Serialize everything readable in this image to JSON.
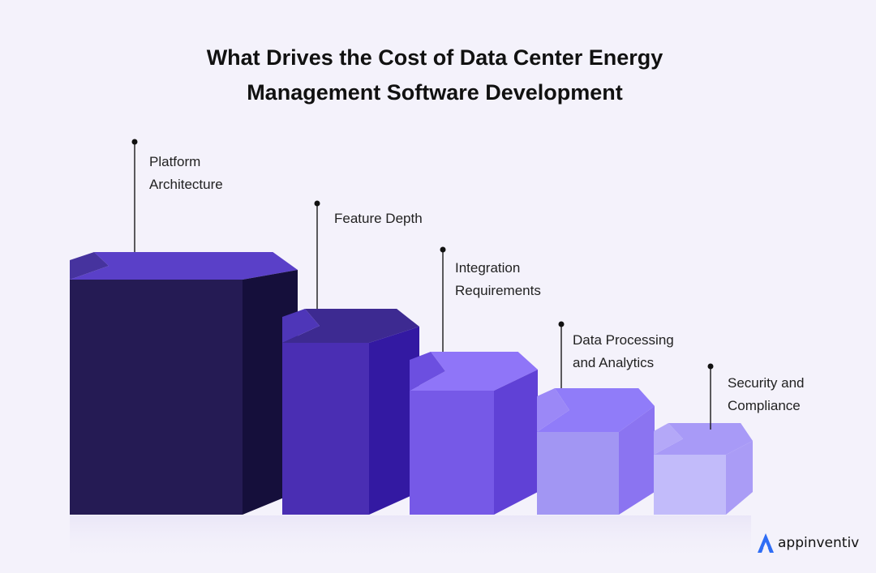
{
  "title": {
    "line1": "What Drives the Cost of Data Center Energy",
    "line2": "Management Software Development"
  },
  "steps": [
    {
      "line1": "Platform",
      "line2": "Architecture",
      "colors": {
        "front": "#251b54",
        "side": "#150f3b",
        "top": "#5a40c8",
        "notch": "#46339e"
      }
    },
    {
      "line1": "Feature Depth",
      "line2": "",
      "colors": {
        "front": "#4a2eb3",
        "side": "#3319a2",
        "top": "#3d2a91",
        "notch": "#4e36b8"
      }
    },
    {
      "line1": "Integration",
      "line2": "Requirements",
      "colors": {
        "front": "#7659e7",
        "side": "#6041d6",
        "top": "#8f75f8",
        "notch": "#6c4fe0"
      }
    },
    {
      "line1": "Data Processing",
      "line2": "and Analytics",
      "colors": {
        "front": "#a296f3",
        "side": "#8b74f1",
        "top": "#907cf9",
        "notch": "#9b88f7"
      }
    },
    {
      "line1": "Security and",
      "line2": "Compliance",
      "colors": {
        "front": "#c2bbfa",
        "side": "#aa9cf6",
        "top": "#a89af7",
        "notch": "#b4a8f8"
      }
    }
  ],
  "brand": {
    "name": "appinventiv",
    "icon": "appinventiv-logo-icon",
    "color": "#2f6df5"
  }
}
